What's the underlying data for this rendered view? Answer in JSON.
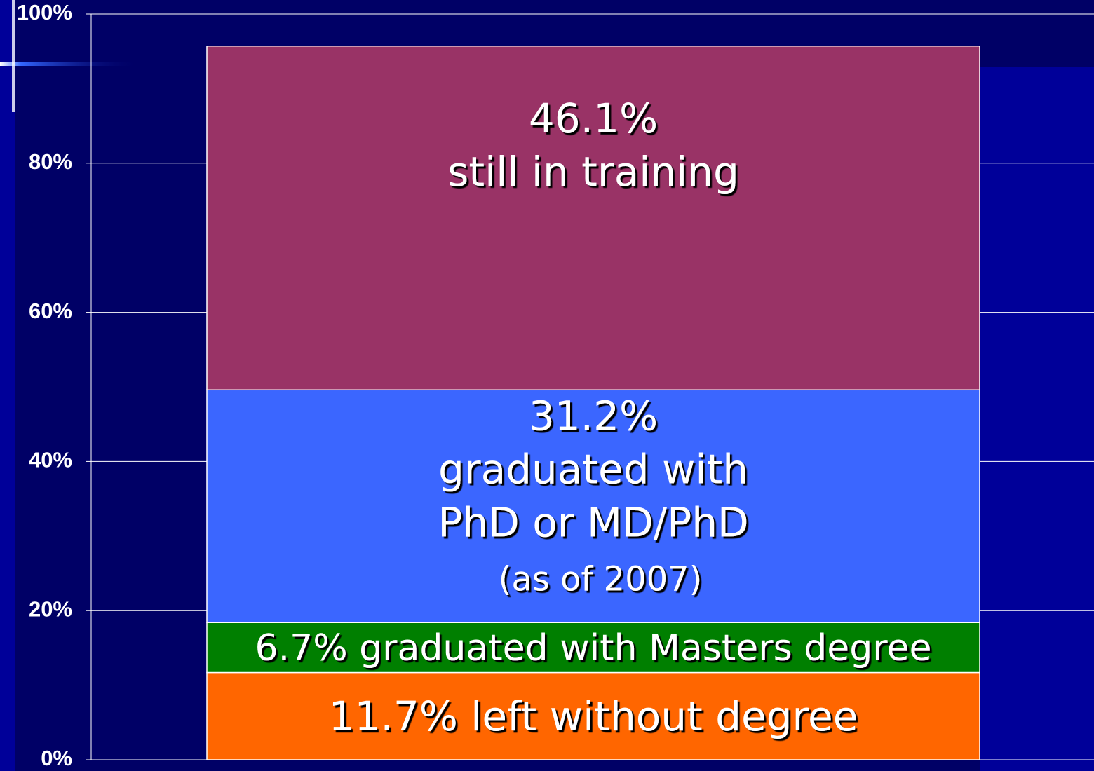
{
  "chart_data": {
    "type": "stacked_bar",
    "categories": [
      null
    ],
    "series": [
      {
        "color": "#ff6600",
        "values": [
          11.7
        ],
        "value_labels": [
          "11.7%"
        ],
        "label_lines": [
          "left without degree"
        ]
      },
      {
        "color": "#007f00",
        "values": [
          6.7
        ],
        "value_labels": [
          "6.7%"
        ],
        "label_lines": [
          "graduated with Masters degree"
        ]
      },
      {
        "color": "#3b66ff",
        "values": [
          31.2
        ],
        "value_labels": [
          "31.2%"
        ],
        "label_lines": [
          "graduated with",
          "PhD or MD/PhD",
          "(as of 2007)"
        ]
      },
      {
        "color": "#993366",
        "values": [
          46.1
        ],
        "value_labels": [
          "46.1%"
        ],
        "label_lines": [
          "still in training"
        ]
      }
    ],
    "ylim": [
      0,
      100
    ],
    "yticks": [
      {
        "value": 0,
        "label": "0%"
      },
      {
        "value": 20,
        "label": "20%"
      },
      {
        "value": 40,
        "label": "40%"
      },
      {
        "value": 60,
        "label": "60%"
      },
      {
        "value": 80,
        "label": "80%"
      },
      {
        "value": 100,
        "label": "100%"
      }
    ],
    "grid": true
  }
}
